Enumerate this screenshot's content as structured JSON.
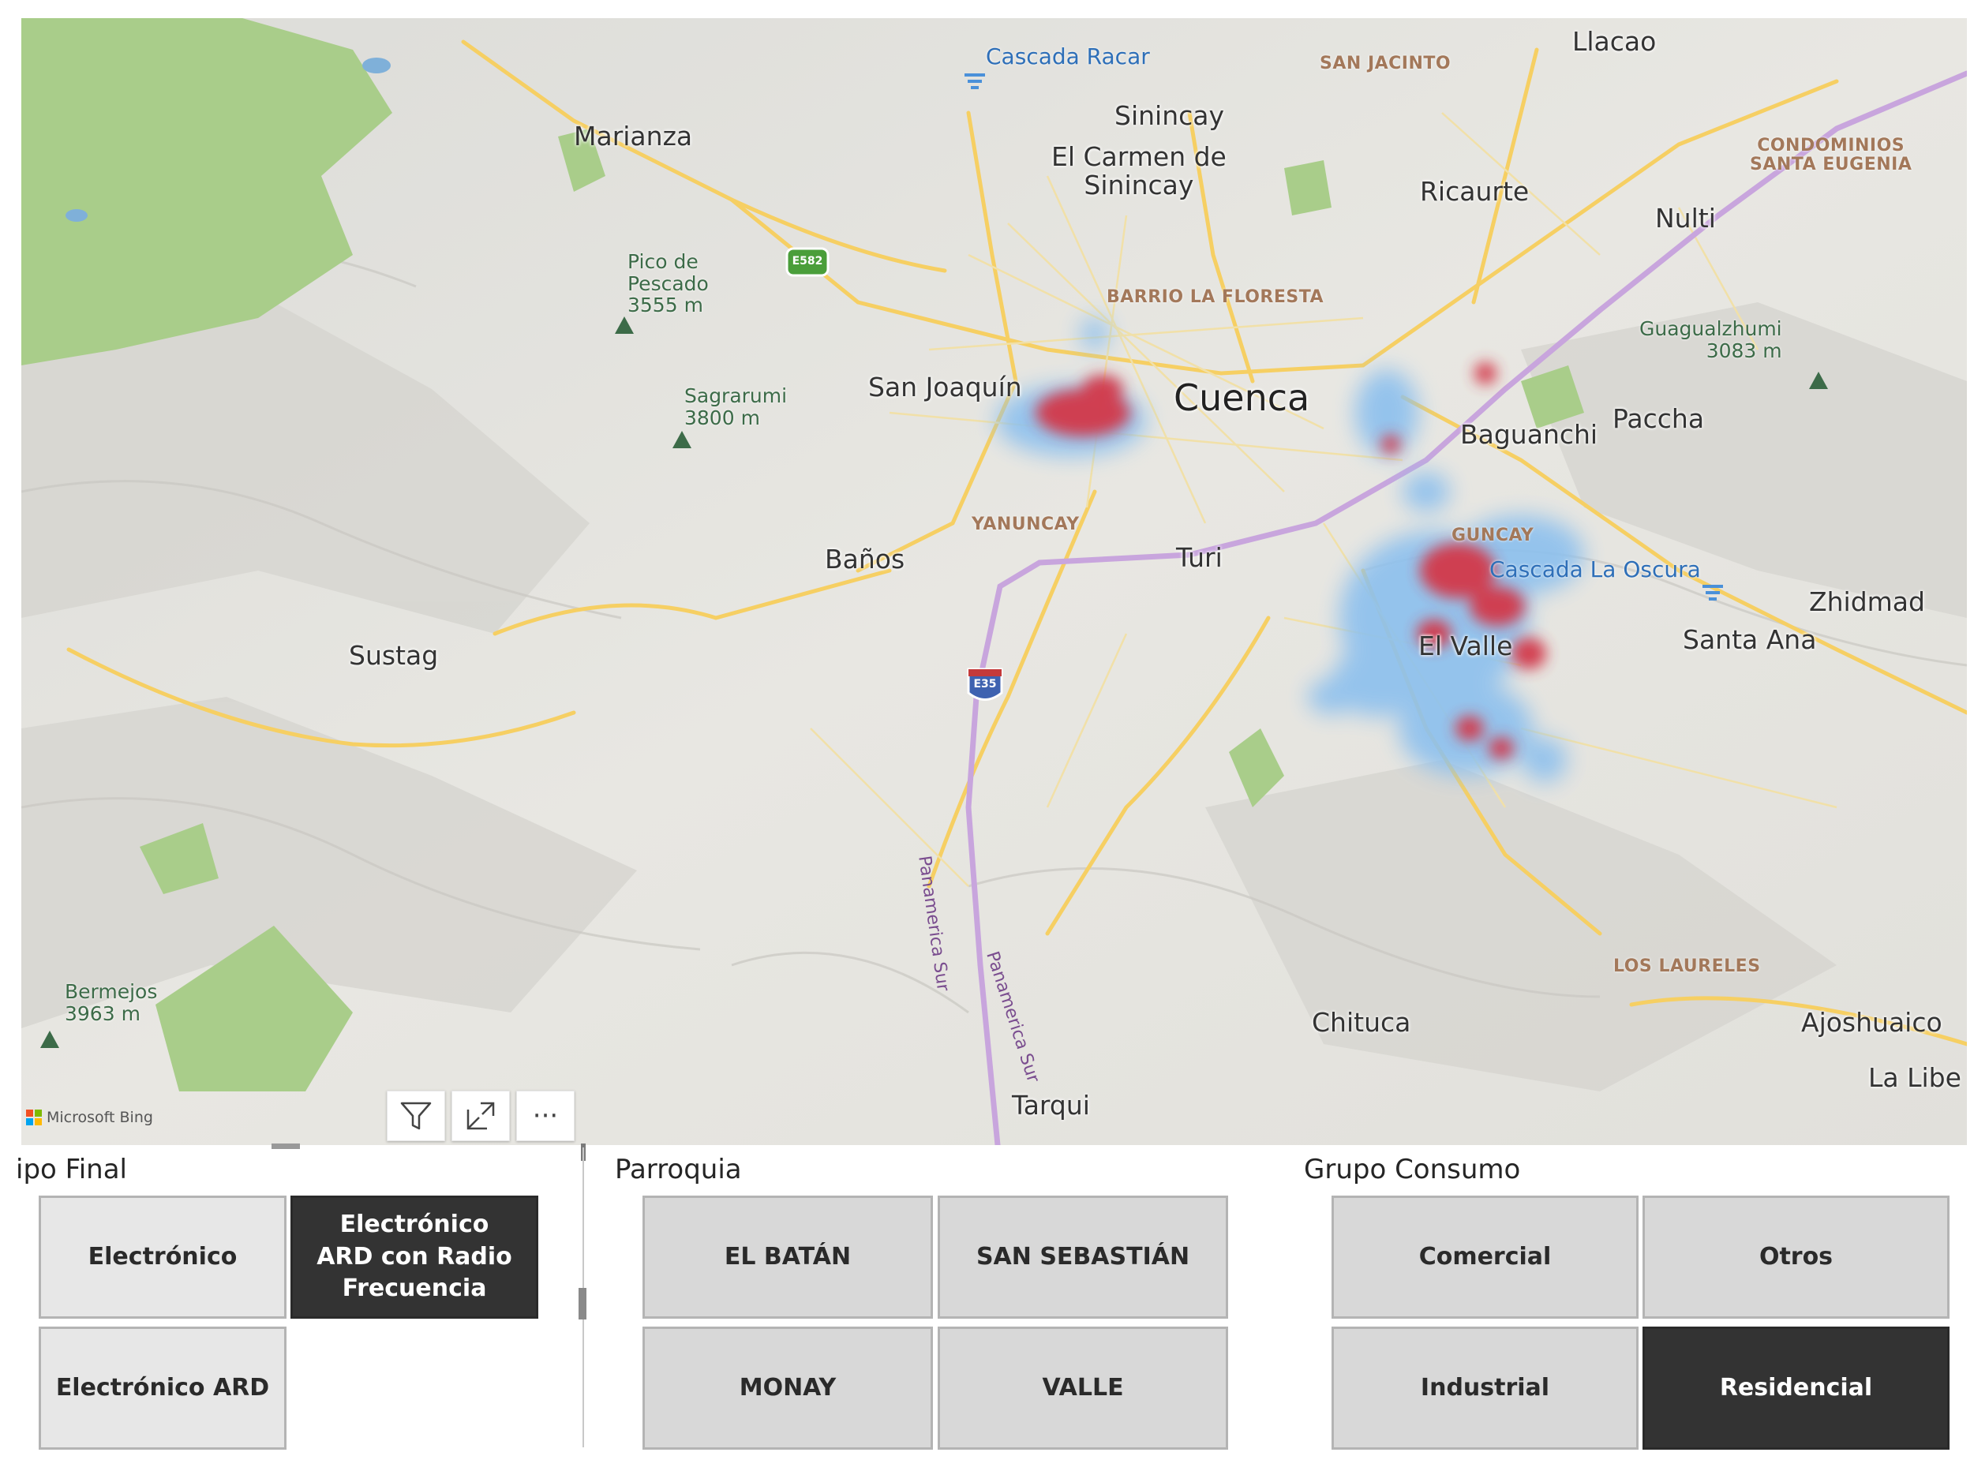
{
  "map": {
    "attribution": "Microsoft Bing",
    "labels": {
      "cascada_racar": "Cascada Racar",
      "san_jacinto": "SAN JACINTO",
      "llacao": "Llacao",
      "marianza": "Marianza",
      "sinincay": "Sinincay",
      "el_carmen": "El Carmen de\nSinincay",
      "ricaurte": "Ricaurte",
      "condominios": "CONDOMINIOS\nSANTA EUGENIA",
      "nulti": "Nulti",
      "pico_pescado": "Pico de\nPescado\n3555 m",
      "barrio_floresta": "BARRIO LA FLORESTA",
      "guagualzhumi": "Guagualzhumi\n3083 m",
      "san_joaquin": "San Joaquín",
      "cuenca": "Cuenca",
      "sagrarumi": "Sagrarumi\n3800 m",
      "baguanchi": "Baguanchi",
      "paccha": "Paccha",
      "yanuncay": "YANUNCAY",
      "banos": "Baños",
      "turi": "Turi",
      "guncay": "GUNCAY",
      "cascada_oscura": "Cascada La Oscura",
      "zhidmad": "Zhidmad",
      "el_valle": "El Valle",
      "santa_ana": "Santa Ana",
      "sustag": "Sustag",
      "panamericana_1": "Panamerica Sur",
      "panamericana_2": "Panamerica Sur",
      "los_laureles": "LOS LAURELES",
      "bermejos": "Bermejos\n3963 m",
      "chituca": "Chituca",
      "ajoshuaico": "Ajoshuaico",
      "la_libe": "La Libe",
      "tarqui": "Tarqui"
    },
    "shields": {
      "e582": "E582",
      "e35": "E35"
    },
    "colors": {
      "terrain": "#e7e6e1",
      "forest": "#a9cd8a",
      "road": "#f6cf63",
      "highway": "#c8a5dd",
      "heat_blue": "#8cc0ee",
      "heat_red": "#d33848"
    }
  },
  "visual_header": {
    "filter_icon": "filter-icon",
    "focus_icon": "focus-mode-icon",
    "more_icon": "more-options-icon",
    "more_label": "···"
  },
  "slicers": {
    "tipo_final": {
      "title": "ipo Final",
      "options": [
        {
          "label": "Electrónico",
          "selected": false
        },
        {
          "label": "Electrónico ARD con Radio Frecuencia",
          "selected": true
        },
        {
          "label": "Electrónico ARD",
          "selected": false
        }
      ]
    },
    "parroquia": {
      "title": "Parroquia",
      "options": [
        {
          "label": "EL BATÁN",
          "selected": false
        },
        {
          "label": "SAN SEBASTIÁN",
          "selected": false
        },
        {
          "label": "MONAY",
          "selected": false
        },
        {
          "label": "VALLE",
          "selected": false
        }
      ]
    },
    "grupo_consumo": {
      "title": "Grupo Consumo",
      "options": [
        {
          "label": "Comercial",
          "selected": false
        },
        {
          "label": "Otros",
          "selected": false
        },
        {
          "label": "Industrial",
          "selected": false
        },
        {
          "label": "Residencial",
          "selected": true
        }
      ]
    }
  }
}
